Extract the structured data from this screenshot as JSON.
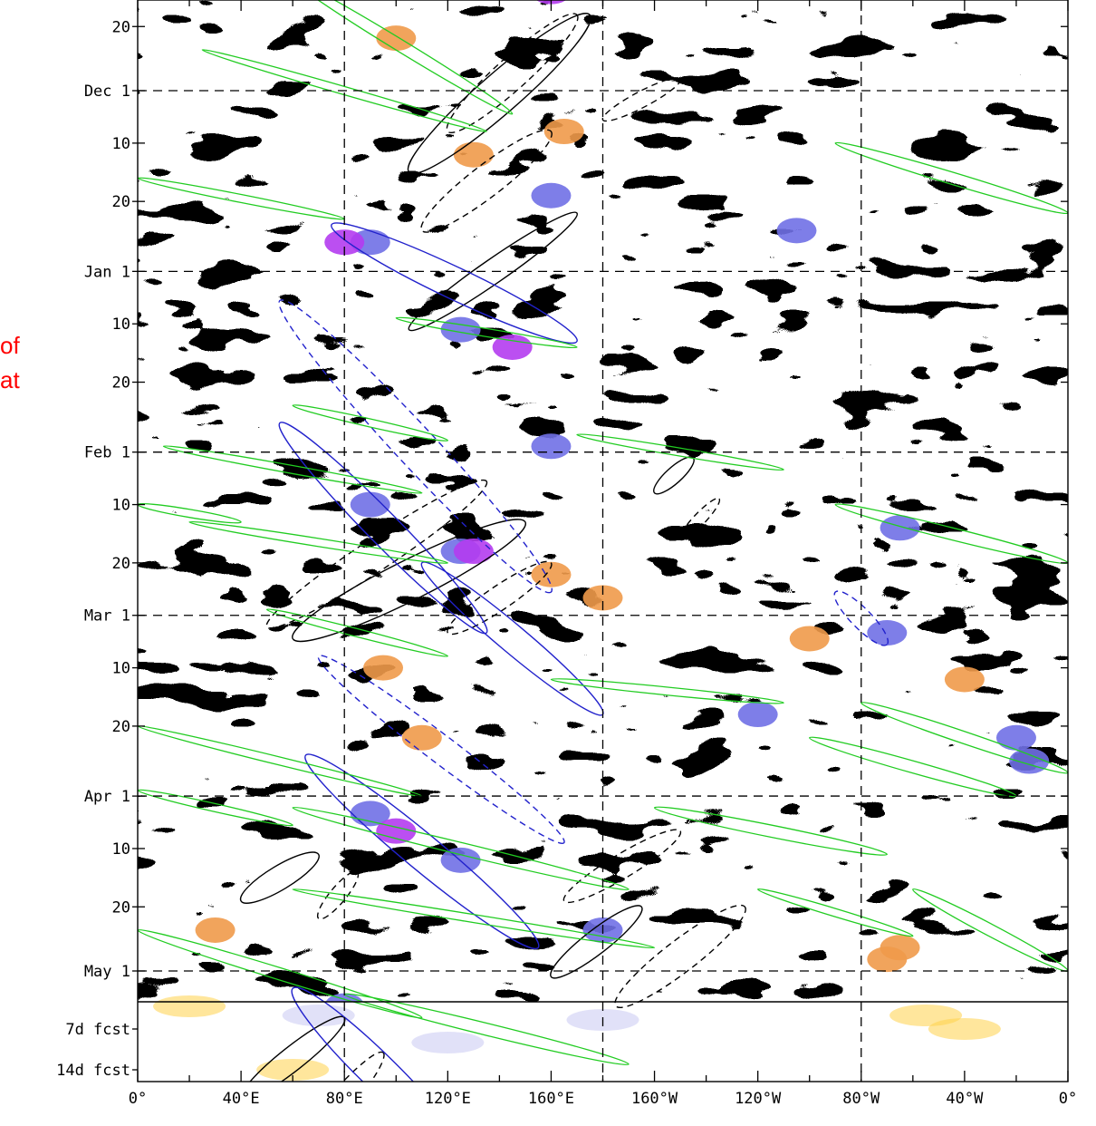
{
  "side_text": {
    "line1": "of",
    "line2": "at"
  },
  "chart_data": {
    "type": "heatmap",
    "title": "",
    "xlabel": "",
    "ylabel": "",
    "x_ticks": [
      {
        "lon": 0,
        "label": "0°"
      },
      {
        "lon": 40,
        "label": "40°E"
      },
      {
        "lon": 80,
        "label": "80°E"
      },
      {
        "lon": 120,
        "label": "120°E"
      },
      {
        "lon": 160,
        "label": "160°E"
      },
      {
        "lon": 200,
        "label": "160°W"
      },
      {
        "lon": 240,
        "label": "120°W"
      },
      {
        "lon": 280,
        "label": "80°W"
      },
      {
        "lon": 320,
        "label": "40°W"
      },
      {
        "lon": 360,
        "label": "0°"
      }
    ],
    "xlim": [
      0,
      360
    ],
    "y_ticks": [
      {
        "day": -10,
        "label": "20"
      },
      {
        "day": 1,
        "label": "Dec 1"
      },
      {
        "day": 10,
        "label": "10"
      },
      {
        "day": 20,
        "label": "20"
      },
      {
        "day": 32,
        "label": "Jan 1"
      },
      {
        "day": 41,
        "label": "10"
      },
      {
        "day": 51,
        "label": "20"
      },
      {
        "day": 63,
        "label": "Feb 1"
      },
      {
        "day": 72,
        "label": "10"
      },
      {
        "day": 82,
        "label": "20"
      },
      {
        "day": 91,
        "label": "Mar 1"
      },
      {
        "day": 100,
        "label": "10"
      },
      {
        "day": 110,
        "label": "20"
      },
      {
        "day": 122,
        "label": "Apr 1"
      },
      {
        "day": 131,
        "label": "10"
      },
      {
        "day": 141,
        "label": "20"
      },
      {
        "day": 152,
        "label": "May 1"
      }
    ],
    "forecast_labels": [
      "7d fcst",
      "14d fcst"
    ],
    "dashed_grid_lon": [
      80,
      180,
      280
    ],
    "dashed_grid_days": [
      1,
      32,
      63,
      91,
      122,
      152
    ],
    "colors": {
      "positive_light": "#ffd24a",
      "positive_strong": "#f09a4a",
      "negative_light": "#c8c8f2",
      "negative_mid": "#7070e6",
      "negative_strong": "#b43cf0",
      "kelvin_contour": "#22cc22",
      "mjo_contour": "#2222cc",
      "er_contour": "#000000"
    },
    "contours": [
      {
        "type": "er",
        "lon": [
          120,
          170
        ],
        "day": [
          8,
          -12
        ],
        "width": 8,
        "dashed": true
      },
      {
        "type": "er",
        "lon": [
          105,
          175
        ],
        "day": [
          15,
          -12
        ],
        "width": 10,
        "dashed": false
      },
      {
        "type": "er",
        "lon": [
          110,
          160
        ],
        "day": [
          25,
          8
        ],
        "width": 8,
        "dashed": true
      },
      {
        "type": "er",
        "lon": [
          105,
          170
        ],
        "day": [
          42,
          22
        ],
        "width": 6,
        "dashed": false
      },
      {
        "type": "er",
        "lon": [
          180,
          210
        ],
        "day": [
          6,
          -1
        ],
        "width": 4,
        "dashed": true
      },
      {
        "type": "er",
        "lon": [
          50,
          135
        ],
        "day": [
          93,
          68
        ],
        "width": 8,
        "dashed": true
      },
      {
        "type": "er",
        "lon": [
          60,
          150
        ],
        "day": [
          95,
          75
        ],
        "width": 10,
        "dashed": false
      },
      {
        "type": "er",
        "lon": [
          120,
          160
        ],
        "day": [
          94,
          82
        ],
        "width": 6,
        "dashed": true
      },
      {
        "type": "er",
        "lon": [
          200,
          215
        ],
        "day": [
          70,
          64
        ],
        "width": 4,
        "dashed": false
      },
      {
        "type": "er",
        "lon": [
          210,
          225
        ],
        "day": [
          78,
          71
        ],
        "width": 3,
        "dashed": true
      },
      {
        "type": "er",
        "lon": [
          165,
          210
        ],
        "day": [
          140,
          128
        ],
        "width": 6,
        "dashed": true
      },
      {
        "type": "er",
        "lon": [
          40,
          70
        ],
        "day": [
          140,
          132
        ],
        "width": 6,
        "dashed": false
      },
      {
        "type": "er",
        "lon": [
          70,
          85
        ],
        "day": [
          143,
          135
        ],
        "width": 4,
        "dashed": true
      },
      {
        "type": "er",
        "lon": [
          185,
          235
        ],
        "day": [
          158,
          141
        ],
        "width": 8,
        "dashed": true
      },
      {
        "type": "er",
        "lon": [
          160,
          195
        ],
        "day": [
          153,
          141
        ],
        "width": 6,
        "dashed": false
      },
      {
        "type": "er",
        "lon": [
          40,
          80
        ],
        "day": [
          174,
          160
        ],
        "width": 6,
        "dashed": false
      },
      {
        "type": "er",
        "lon": [
          60,
          95
        ],
        "day": [
          184,
          166
        ],
        "width": 6,
        "dashed": true
      },
      {
        "type": "mjo",
        "lon": [
          75,
          170
        ],
        "day": [
          24,
          44
        ],
        "width": 8,
        "dashed": false
      },
      {
        "type": "mjo",
        "lon": [
          55,
          160
        ],
        "day": [
          37,
          87
        ],
        "width": 10,
        "dashed": true
      },
      {
        "type": "mjo",
        "lon": [
          55,
          135
        ],
        "day": [
          58,
          94
        ],
        "width": 8,
        "dashed": false
      },
      {
        "type": "mjo",
        "lon": [
          110,
          180
        ],
        "day": [
          82,
          108
        ],
        "width": 7,
        "dashed": false
      },
      {
        "type": "mjo",
        "lon": [
          70,
          165
        ],
        "day": [
          98,
          130
        ],
        "width": 7,
        "dashed": true
      },
      {
        "type": "mjo",
        "lon": [
          65,
          155
        ],
        "day": [
          115,
          148
        ],
        "width": 9,
        "dashed": false
      },
      {
        "type": "mjo",
        "lon": [
          60,
          125
        ],
        "day": [
          155,
          183
        ],
        "width": 9,
        "dashed": false
      },
      {
        "type": "mjo",
        "lon": [
          270,
          290
        ],
        "day": [
          87,
          96
        ],
        "width": 5,
        "dashed": true
      },
      {
        "type": "kelvin",
        "lon": [
          60,
          145
        ],
        "day": [
          -18,
          5
        ],
        "width": 3
      },
      {
        "type": "kelvin",
        "lon": [
          25,
          135
        ],
        "day": [
          -6,
          8
        ],
        "width": 2
      },
      {
        "type": "kelvin",
        "lon": [
          0,
          80
        ],
        "day": [
          16,
          23
        ],
        "width": 2
      },
      {
        "type": "kelvin",
        "lon": [
          270,
          360
        ],
        "day": [
          10,
          22
        ],
        "width": 3
      },
      {
        "type": "kelvin",
        "lon": [
          100,
          170
        ],
        "day": [
          40,
          45
        ],
        "width": 2
      },
      {
        "type": "kelvin",
        "lon": [
          60,
          120
        ],
        "day": [
          55,
          61
        ],
        "width": 2
      },
      {
        "type": "kelvin",
        "lon": [
          10,
          110
        ],
        "day": [
          62,
          70
        ],
        "width": 2
      },
      {
        "type": "kelvin",
        "lon": [
          170,
          250
        ],
        "day": [
          60,
          66
        ],
        "width": 2
      },
      {
        "type": "kelvin",
        "lon": [
          0,
          40
        ],
        "day": [
          72,
          75
        ],
        "width": 2
      },
      {
        "type": "kelvin",
        "lon": [
          270,
          360
        ],
        "day": [
          72,
          82
        ],
        "width": 3
      },
      {
        "type": "kelvin",
        "lon": [
          20,
          120
        ],
        "day": [
          75,
          82
        ],
        "width": 2
      },
      {
        "type": "kelvin",
        "lon": [
          50,
          120
        ],
        "day": [
          90,
          98
        ],
        "width": 2
      },
      {
        "type": "kelvin",
        "lon": [
          160,
          250
        ],
        "day": [
          102,
          106
        ],
        "width": 2
      },
      {
        "type": "kelvin",
        "lon": [
          280,
          360
        ],
        "day": [
          106,
          118
        ],
        "width": 3
      },
      {
        "type": "kelvin",
        "lon": [
          0,
          110
        ],
        "day": [
          110,
          122
        ],
        "width": 2
      },
      {
        "type": "kelvin",
        "lon": [
          260,
          340
        ],
        "day": [
          112,
          122
        ],
        "width": 3
      },
      {
        "type": "kelvin",
        "lon": [
          60,
          190
        ],
        "day": [
          124,
          138
        ],
        "width": 3
      },
      {
        "type": "kelvin",
        "lon": [
          0,
          60
        ],
        "day": [
          121,
          127
        ],
        "width": 2
      },
      {
        "type": "kelvin",
        "lon": [
          200,
          290
        ],
        "day": [
          124,
          132
        ],
        "width": 3
      },
      {
        "type": "kelvin",
        "lon": [
          60,
          200
        ],
        "day": [
          138,
          148
        ],
        "width": 2
      },
      {
        "type": "kelvin",
        "lon": [
          0,
          110
        ],
        "day": [
          145,
          160
        ],
        "width": 3
      },
      {
        "type": "kelvin",
        "lon": [
          80,
          190
        ],
        "day": [
          156,
          168
        ],
        "width": 3
      },
      {
        "type": "kelvin",
        "lon": [
          240,
          300
        ],
        "day": [
          138,
          146
        ],
        "width": 2
      },
      {
        "type": "kelvin",
        "lon": [
          300,
          360
        ],
        "day": [
          138,
          152
        ],
        "width": 3
      }
    ]
  }
}
